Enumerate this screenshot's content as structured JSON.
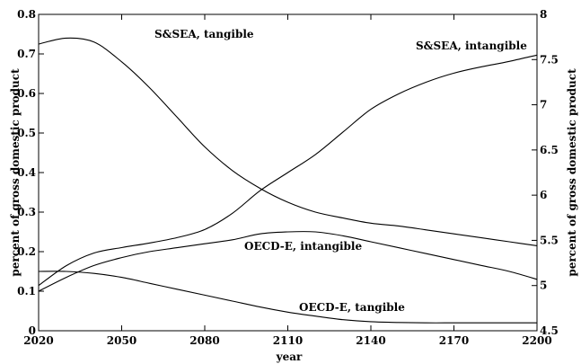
{
  "chart_data": {
    "type": "line",
    "xlabel": "year",
    "ylabel_left": "percent of gross domestic product",
    "ylabel_right": "percent of gross domestic product",
    "xlim": [
      2020,
      2200
    ],
    "ylim_left": [
      0,
      0.8
    ],
    "ylim_right": [
      4.5,
      8
    ],
    "x_ticks": [
      "2020",
      "2050",
      "2080",
      "2110",
      "2140",
      "2170",
      "2200"
    ],
    "y_ticks_left": [
      "0",
      "0.1",
      "0.2",
      "0.3",
      "0.4",
      "0.5",
      "0.6",
      "0.7",
      "0.8"
    ],
    "y_ticks_right": [
      "4.5",
      "5",
      "5.5",
      "6",
      "6.5",
      "7",
      "7.5",
      "8"
    ],
    "grid": false,
    "series": [
      {
        "name": "S&SEA,  tangible",
        "axis": "left",
        "x": [
          2020,
          2030,
          2040,
          2050,
          2060,
          2070,
          2080,
          2090,
          2100,
          2110,
          2120,
          2130,
          2140,
          2150,
          2160,
          2170,
          2180,
          2190,
          2200
        ],
        "y": [
          0.725,
          0.74,
          0.73,
          0.68,
          0.615,
          0.54,
          0.465,
          0.405,
          0.36,
          0.325,
          0.3,
          0.285,
          0.272,
          0.265,
          0.255,
          0.245,
          0.235,
          0.225,
          0.215
        ]
      },
      {
        "name": "S&SEA,  intangible",
        "axis": "right",
        "x": [
          2020,
          2030,
          2040,
          2050,
          2060,
          2070,
          2080,
          2090,
          2100,
          2110,
          2120,
          2130,
          2140,
          2150,
          2160,
          2170,
          2180,
          2190,
          2200
        ],
        "y": [
          5.0,
          5.22,
          5.36,
          5.42,
          5.47,
          5.53,
          5.62,
          5.8,
          6.05,
          6.25,
          6.45,
          6.7,
          6.95,
          7.12,
          7.25,
          7.35,
          7.42,
          7.48,
          7.55
        ]
      },
      {
        "name": "OECD-E,  intangible",
        "axis": "left",
        "x": [
          2020,
          2030,
          2040,
          2050,
          2060,
          2070,
          2080,
          2090,
          2100,
          2110,
          2120,
          2130,
          2140,
          2150,
          2160,
          2170,
          2180,
          2190,
          2200
        ],
        "y": [
          0.1,
          0.135,
          0.165,
          0.185,
          0.2,
          0.21,
          0.22,
          0.23,
          0.245,
          0.25,
          0.25,
          0.24,
          0.225,
          0.21,
          0.195,
          0.18,
          0.165,
          0.15,
          0.13
        ]
      },
      {
        "name": "OECD-E,  tangible",
        "axis": "left",
        "x": [
          2020,
          2030,
          2040,
          2050,
          2060,
          2070,
          2080,
          2090,
          2100,
          2110,
          2120,
          2130,
          2140,
          2150,
          2160,
          2170,
          2180,
          2190,
          2200
        ],
        "y": [
          0.15,
          0.15,
          0.145,
          0.135,
          0.12,
          0.105,
          0.09,
          0.075,
          0.06,
          0.047,
          0.037,
          0.028,
          0.023,
          0.021,
          0.02,
          0.02,
          0.02,
          0.02,
          0.02
        ]
      }
    ],
    "annotations": [
      {
        "text": "S&SEA,  tangible",
        "series": 0
      },
      {
        "text": "S&SEA,  intangible",
        "series": 1
      },
      {
        "text": "OECD-E,  intangible",
        "series": 2
      },
      {
        "text": "OECD-E,  tangible",
        "series": 3
      }
    ]
  }
}
